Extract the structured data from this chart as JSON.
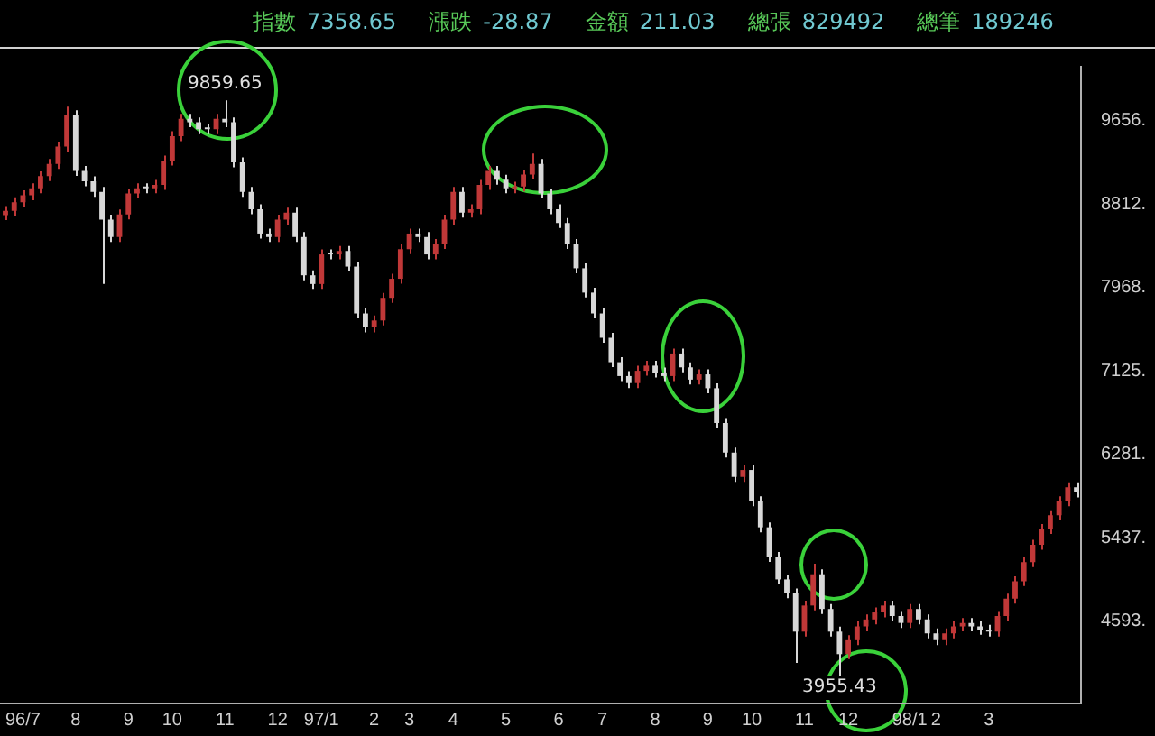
{
  "chart_data": {
    "type": "candlestick",
    "title": "指數 7358.65 漲跌 -28.87 金額 211.03 總張 829492 總筆 189246",
    "categories": [
      null,
      null,
      "96/7",
      null,
      null,
      null,
      null,
      null,
      "8",
      null,
      null,
      null,
      null,
      null,
      "9",
      null,
      null,
      null,
      null,
      "10",
      null,
      null,
      null,
      null,
      null,
      "11",
      null,
      null,
      null,
      null,
      null,
      "12",
      null,
      null,
      null,
      null,
      "97/1",
      null,
      null,
      null,
      null,
      null,
      "2",
      null,
      null,
      null,
      "3",
      null,
      null,
      null,
      null,
      "4",
      null,
      null,
      null,
      null,
      null,
      "5",
      null,
      null,
      null,
      null,
      null,
      "6",
      null,
      null,
      null,
      null,
      "7",
      null,
      null,
      null,
      null,
      null,
      "8",
      null,
      null,
      null,
      null,
      null,
      "9",
      null,
      null,
      null,
      null,
      "10",
      null,
      null,
      null,
      null,
      null,
      "11",
      null,
      null,
      null,
      null,
      "12",
      null,
      null,
      null,
      null,
      null,
      null,
      "98/1",
      null,
      null,
      "2",
      null,
      null,
      null,
      null,
      null,
      "3",
      null,
      null,
      null,
      null,
      null,
      null,
      null,
      null,
      null,
      null
    ],
    "ohlc": [
      [
        8700,
        8790,
        8650,
        8742
      ],
      [
        8742,
        8880,
        8692,
        8830
      ],
      [
        8830,
        8950,
        8780,
        8900
      ],
      [
        8900,
        9020,
        8850,
        8970
      ],
      [
        8970,
        9143,
        8920,
        9093
      ],
      [
        9093,
        9267,
        9043,
        9217
      ],
      [
        9217,
        9442,
        9167,
        9392
      ],
      [
        9392,
        9797,
        9342,
        9709
      ],
      [
        9709,
        9759,
        9096,
        9146
      ],
      [
        9146,
        9196,
        8991,
        9041
      ],
      [
        9041,
        9091,
        8885,
        8935
      ],
      [
        8935,
        8985,
        8003,
        8654
      ],
      [
        8654,
        8704,
        8428,
        8478
      ],
      [
        8478,
        8757,
        8428,
        8707
      ],
      [
        8707,
        8968,
        8657,
        8918
      ],
      [
        8918,
        9020,
        8868,
        8970
      ],
      [
        8970,
        9020,
        8920,
        8970
      ],
      [
        8970,
        9056,
        8920,
        9006
      ],
      [
        9006,
        9302,
        8956,
        9252
      ],
      [
        9252,
        9548,
        9202,
        9498
      ],
      [
        9498,
        9724,
        9448,
        9674
      ],
      [
        9674,
        9724,
        9588,
        9638
      ],
      [
        9638,
        9688,
        9518,
        9568
      ],
      [
        9568,
        9618,
        9518,
        9568
      ],
      [
        9568,
        9724,
        9518,
        9674
      ],
      [
        9674,
        9859.65,
        9588,
        9638
      ],
      [
        9638,
        9688,
        9184,
        9234
      ],
      [
        9234,
        9284,
        8885,
        8935
      ],
      [
        8935,
        8985,
        8709,
        8759
      ],
      [
        8759,
        8809,
        8463,
        8513
      ],
      [
        8513,
        8563,
        8428,
        8478
      ],
      [
        8478,
        8704,
        8428,
        8654
      ],
      [
        8654,
        8774,
        8604,
        8724
      ],
      [
        8724,
        8774,
        8428,
        8478
      ],
      [
        8478,
        8528,
        8041,
        8091
      ],
      [
        8091,
        8141,
        7953,
        8003
      ],
      [
        8003,
        8352,
        7953,
        8302
      ],
      [
        8302,
        8352,
        8252,
        8302
      ],
      [
        8302,
        8387,
        8252,
        8337
      ],
      [
        8337,
        8387,
        8129,
        8179
      ],
      [
        8179,
        8229,
        7655,
        7705
      ],
      [
        7705,
        7755,
        7514,
        7564
      ],
      [
        7564,
        7684,
        7514,
        7634
      ],
      [
        7634,
        7913,
        7584,
        7863
      ],
      [
        7863,
        8106,
        7813,
        8056
      ],
      [
        8056,
        8405,
        8006,
        8355
      ],
      [
        8355,
        8563,
        8305,
        8513
      ],
      [
        8513,
        8563,
        8428,
        8478
      ],
      [
        8478,
        8528,
        8252,
        8302
      ],
      [
        8302,
        8458,
        8252,
        8408
      ],
      [
        8408,
        8704,
        8358,
        8654
      ],
      [
        8654,
        8985,
        8604,
        8935
      ],
      [
        8935,
        8985,
        8674,
        8724
      ],
      [
        8724,
        8809,
        8674,
        8759
      ],
      [
        8759,
        9056,
        8709,
        9006
      ],
      [
        9006,
        9196,
        8956,
        9146
      ],
      [
        9146,
        9196,
        9008,
        9058
      ],
      [
        9058,
        9108,
        8920,
        8970
      ],
      [
        8970,
        9038,
        8920,
        8988
      ],
      [
        8988,
        9161,
        8938,
        9111
      ],
      [
        9111,
        9322,
        9061,
        9217
      ],
      [
        9217,
        9267,
        8868,
        8918
      ],
      [
        8918,
        8968,
        8709,
        8759
      ],
      [
        8759,
        8809,
        8569,
        8619
      ],
      [
        8619,
        8669,
        8358,
        8408
      ],
      [
        8408,
        8458,
        8112,
        8162
      ],
      [
        8162,
        8212,
        7866,
        7916
      ],
      [
        7916,
        7966,
        7655,
        7705
      ],
      [
        7705,
        7755,
        7409,
        7459
      ],
      [
        7459,
        7509,
        7162,
        7212
      ],
      [
        7212,
        7262,
        7022,
        7072
      ],
      [
        7072,
        7122,
        6951,
        7001
      ],
      [
        7001,
        7175,
        6951,
        7125
      ],
      [
        7125,
        7227,
        7075,
        7177
      ],
      [
        7177,
        7227,
        7057,
        7107
      ],
      [
        7107,
        7157,
        7022,
        7072
      ],
      [
        7072,
        7350,
        7022,
        7300
      ],
      [
        7300,
        7350,
        7110,
        7160
      ],
      [
        7160,
        7210,
        6986,
        7036
      ],
      [
        7036,
        7139,
        6986,
        7089
      ],
      [
        7089,
        7139,
        6899,
        6949
      ],
      [
        6949,
        6999,
        6547,
        6597
      ],
      [
        6597,
        6647,
        6248,
        6298
      ],
      [
        6298,
        6348,
        6002,
        6052
      ],
      [
        6052,
        6172,
        6002,
        6122
      ],
      [
        6122,
        6172,
        5756,
        5806
      ],
      [
        5806,
        5856,
        5492,
        5542
      ],
      [
        5542,
        5592,
        5193,
        5243
      ],
      [
        5243,
        5293,
        4965,
        5015
      ],
      [
        5015,
        5065,
        4824,
        4874
      ],
      [
        4874,
        4924,
        4171,
        4487
      ],
      [
        4487,
        4801,
        4437,
        4751
      ],
      [
        4751,
        5173,
        4701,
        5067
      ],
      [
        5067,
        5117,
        4666,
        4716
      ],
      [
        4716,
        4766,
        4437,
        4487
      ],
      [
        4487,
        4537,
        3955.43,
        4259
      ],
      [
        4259,
        4450,
        4209,
        4400
      ],
      [
        4400,
        4590,
        4350,
        4540
      ],
      [
        4540,
        4660,
        4490,
        4610
      ],
      [
        4610,
        4731,
        4560,
        4681
      ],
      [
        4681,
        4801,
        4631,
        4751
      ],
      [
        4751,
        4801,
        4595,
        4645
      ],
      [
        4645,
        4695,
        4525,
        4575
      ],
      [
        4575,
        4766,
        4525,
        4716
      ],
      [
        4716,
        4766,
        4560,
        4610
      ],
      [
        4610,
        4660,
        4420,
        4470
      ],
      [
        4470,
        4520,
        4350,
        4400
      ],
      [
        4400,
        4520,
        4350,
        4470
      ],
      [
        4470,
        4590,
        4420,
        4540
      ],
      [
        4540,
        4625,
        4490,
        4575
      ],
      [
        4575,
        4625,
        4490,
        4540
      ],
      [
        4540,
        4590,
        4455,
        4505
      ],
      [
        4505,
        4555,
        4437,
        4487
      ],
      [
        4487,
        4695,
        4437,
        4645
      ],
      [
        4645,
        4871,
        4595,
        4821
      ],
      [
        4821,
        5047,
        4771,
        4997
      ],
      [
        4997,
        5240,
        4947,
        5190
      ],
      [
        5190,
        5416,
        5140,
        5366
      ],
      [
        5366,
        5575,
        5316,
        5525
      ],
      [
        5525,
        5715,
        5475,
        5665
      ],
      [
        5665,
        5856,
        5615,
        5806
      ],
      [
        5806,
        5997,
        5756,
        5947
      ],
      [
        5947,
        5997,
        5844,
        5894
      ]
    ],
    "colors": [
      "#c03838",
      "#c03838",
      "#c03838",
      "#c03838",
      "#c03838",
      "#c03838",
      "#c03838",
      "#c03838",
      "#d8d8d8",
      "#d8d8d8",
      "#d8d8d8",
      "#d8d8d8",
      "#d8d8d8",
      "#c03838",
      "#c03838",
      "#c03838",
      "#d8d8d8",
      "#c03838",
      "#c03838",
      "#c03838",
      "#c03838",
      "#d8d8d8",
      "#d8d8d8",
      "#d8d8d8",
      "#c03838",
      "#d8d8d8",
      "#d8d8d8",
      "#d8d8d8",
      "#d8d8d8",
      "#d8d8d8",
      "#d8d8d8",
      "#c03838",
      "#c03838",
      "#d8d8d8",
      "#d8d8d8",
      "#d8d8d8",
      "#c03838",
      "#d8d8d8",
      "#c03838",
      "#d8d8d8",
      "#d8d8d8",
      "#d8d8d8",
      "#c03838",
      "#c03838",
      "#c03838",
      "#c03838",
      "#c03838",
      "#d8d8d8",
      "#d8d8d8",
      "#c03838",
      "#c03838",
      "#c03838",
      "#d8d8d8",
      "#c03838",
      "#c03838",
      "#c03838",
      "#d8d8d8",
      "#d8d8d8",
      "#c03838",
      "#c03838",
      "#c03838",
      "#d8d8d8",
      "#d8d8d8",
      "#d8d8d8",
      "#d8d8d8",
      "#d8d8d8",
      "#d8d8d8",
      "#d8d8d8",
      "#d8d8d8",
      "#d8d8d8",
      "#d8d8d8",
      "#d8d8d8",
      "#c03838",
      "#c03838",
      "#d8d8d8",
      "#d8d8d8",
      "#c03838",
      "#d8d8d8",
      "#d8d8d8",
      "#c03838",
      "#d8d8d8",
      "#d8d8d8",
      "#d8d8d8",
      "#d8d8d8",
      "#c03838",
      "#d8d8d8",
      "#d8d8d8",
      "#d8d8d8",
      "#d8d8d8",
      "#d8d8d8",
      "#d8d8d8",
      "#c03838",
      "#c03838",
      "#d8d8d8",
      "#d8d8d8",
      "#d8d8d8",
      "#c03838",
      "#c03838",
      "#c03838",
      "#c03838",
      "#c03838",
      "#d8d8d8",
      "#d8d8d8",
      "#c03838",
      "#d8d8d8",
      "#d8d8d8",
      "#d8d8d8",
      "#c03838",
      "#c03838",
      "#c03838",
      "#d8d8d8",
      "#d8d8d8",
      "#d8d8d8",
      "#c03838",
      "#c03838",
      "#c03838",
      "#c03838",
      "#c03838",
      "#c03838",
      "#c03838",
      "#c03838",
      "#c03838",
      "#d8d8d8"
    ],
    "ylim": [
      3760,
      10200
    ],
    "yticks": [
      {
        "value": 9656,
        "label": "9656."
      },
      {
        "value": 8812,
        "label": "8812."
      },
      {
        "value": 7968,
        "label": "7968."
      },
      {
        "value": 7125,
        "label": "7125."
      },
      {
        "value": 6281,
        "label": "6281."
      },
      {
        "value": 5437,
        "label": "5437."
      },
      {
        "value": 4593,
        "label": "4593."
      }
    ],
    "annotations": [
      {
        "text": "9859.65",
        "y": 9859.65
      },
      {
        "text": "3955.43",
        "y": 3955.43
      }
    ]
  }
}
